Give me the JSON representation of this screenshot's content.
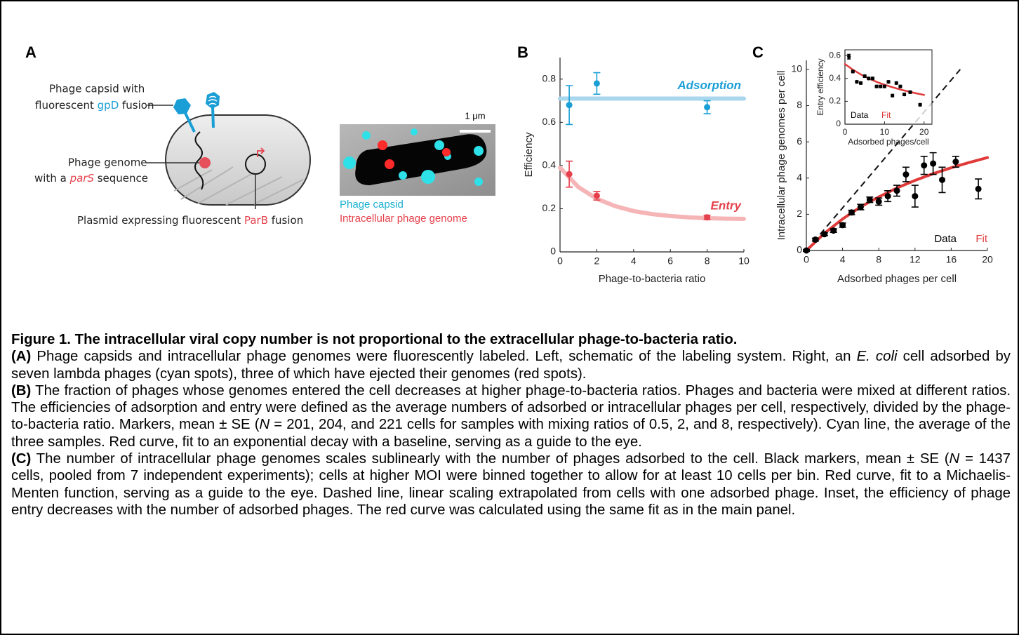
{
  "figure": {
    "panel_a": {
      "label": "A",
      "capsid_label": [
        "Phage capsid with",
        "fluorescent ",
        "gpD",
        " fusion"
      ],
      "genome_label": [
        "Phage genome",
        "with a ",
        "parS",
        " sequence"
      ],
      "plasmid_label": [
        "Plasmid expressing fluorescent ",
        "ParB",
        " fusion"
      ],
      "scale_bar": "1 μm",
      "legend": [
        "Phage capsid",
        "Intracellular phage genome"
      ]
    },
    "caption": {
      "title": "Figure 1. The intracellular viral copy number is not proportional to the extracellular phage-to-bacteria ratio.",
      "paragraphs": [
        {
          "label": "(A)",
          "runs": [
            {
              "text": " Phage capsids and intracellular phage genomes were fluorescently labeled. Left, schematic of the labeling system. Right, an "
            },
            {
              "text": "E. coli",
              "italic": true
            },
            {
              "text": " cell adsorbed by seven lambda phages (cyan spots), three of which have ejected their genomes (red spots)."
            }
          ]
        },
        {
          "label": "(B)",
          "runs": [
            {
              "text": " The fraction of phages whose genomes entered the cell decreases at higher phage-to-bacteria ratios. Phages and bacteria were mixed at different ratios. The efficiencies of adsorption and entry were defined as the average numbers of adsorbed or intracellular phages per cell, respectively, divided by the phage-to-bacteria ratio. Markers, mean ± SE ("
            },
            {
              "text": "N",
              "italic": true
            },
            {
              "text": " = 201, 204, and 221 cells for samples with mixing ratios of 0.5, 2, and 8, respectively). Cyan line, the average of the three samples. Red curve, fit to an exponential decay with a baseline, serving as a guide to the eye."
            }
          ]
        },
        {
          "label": "(C)",
          "runs": [
            {
              "text": " The number of intracellular phage genomes scales sublinearly with the number of phages adsorbed to the cell. Black markers, mean ± SE ("
            },
            {
              "text": "N",
              "italic": true
            },
            {
              "text": " = 1437 cells, pooled from 7 independent experiments); cells at higher MOI were binned together to allow for at least 10 cells per bin. Red curve, fit to a Michaelis-Menten function, serving as a guide to the eye. Dashed line, linear scaling extrapolated from cells with one adsorbed phage. Inset, the efficiency of phage entry decreases with the number of adsorbed phages. The red curve was calculated using the same fit as in the main panel."
            }
          ]
        }
      ]
    }
  },
  "chart_data": [
    {
      "type": "scatter",
      "panel_label": "B",
      "xlabel": "Phage-to-bacteria ratio",
      "ylabel": "Efficiency",
      "xlim": [
        0,
        10
      ],
      "ylim": [
        0,
        0.9
      ],
      "xticks": [
        0,
        2,
        4,
        6,
        8,
        10
      ],
      "yticks": [
        0,
        0.2,
        0.4,
        0.6,
        0.8
      ],
      "series": [
        {
          "name": "Adsorption",
          "color": "#1a9ed6",
          "line_color": "#a8d7ee",
          "x": [
            0.5,
            2,
            8
          ],
          "values": [
            0.68,
            0.78,
            0.67
          ],
          "errors": [
            0.09,
            0.05,
            0.03
          ],
          "line_x": [
            0,
            10
          ],
          "line_values": [
            0.71,
            0.71
          ]
        },
        {
          "name": "Entry",
          "color": "#e5404b",
          "line_color": "#f5b5b7",
          "x": [
            0.5,
            2,
            8
          ],
          "values": [
            0.36,
            0.26,
            0.16
          ],
          "errors": [
            0.06,
            0.02,
            0.01
          ],
          "line_x": [
            0,
            1,
            2,
            3,
            4,
            5,
            6,
            7,
            8,
            9,
            10
          ],
          "line_values": [
            0.39,
            0.3,
            0.246,
            0.212,
            0.189,
            0.175,
            0.166,
            0.16,
            0.156,
            0.154,
            0.153
          ]
        }
      ]
    },
    {
      "type": "scatter",
      "panel_label": "C",
      "xlabel": "Adsorbed phages per cell",
      "ylabel": "Intracellular phage genomes per cell",
      "xlim": [
        0,
        20
      ],
      "ylim": [
        0,
        10.5
      ],
      "xticks": [
        0,
        4,
        8,
        12,
        16,
        20
      ],
      "yticks": [
        0,
        2,
        4,
        6,
        8,
        10
      ],
      "legend": "lower right",
      "reference_line": {
        "x": [
          0,
          17
        ],
        "values": [
          0,
          10
        ]
      },
      "series": [
        {
          "name": "Data",
          "color": "#000000",
          "x": [
            0,
            1,
            2,
            3,
            4,
            5,
            6,
            7,
            8,
            9,
            10,
            11,
            12,
            13,
            14,
            15,
            16.5,
            19
          ],
          "values": [
            0,
            0.6,
            0.9,
            1.1,
            1.4,
            2.1,
            2.4,
            2.8,
            2.7,
            3.0,
            3.3,
            4.2,
            3.0,
            4.7,
            4.8,
            3.9,
            4.9,
            3.4
          ],
          "errors": [
            0.05,
            0.08,
            0.08,
            0.1,
            0.12,
            0.12,
            0.15,
            0.15,
            0.2,
            0.3,
            0.3,
            0.4,
            0.6,
            0.5,
            0.6,
            0.7,
            0.3,
            0.55
          ]
        },
        {
          "name": "Fit",
          "color": "#e03a3a",
          "line_x": [
            0,
            2,
            4,
            6,
            8,
            10,
            12,
            14,
            16,
            18,
            20
          ],
          "line_values": [
            0,
            0.95,
            1.74,
            2.41,
            2.96,
            3.45,
            3.87,
            4.24,
            4.57,
            4.86,
            5.13
          ]
        }
      ]
    },
    {
      "type": "scatter",
      "xlabel": "Adsorbed phages/cell",
      "ylabel": "Entry efficiency",
      "xlim": [
        0,
        22
      ],
      "ylim": [
        0,
        0.65
      ],
      "xticks": [
        0,
        10,
        20
      ],
      "yticks": [
        0,
        0.2,
        0.4,
        0.6
      ],
      "legend": "lower left",
      "series": [
        {
          "name": "Data",
          "color": "#000000",
          "x": [
            1,
            2,
            3,
            4,
            5,
            6,
            7,
            8,
            9,
            10,
            11,
            12,
            13,
            14,
            15,
            16.5,
            19
          ],
          "values": [
            0.59,
            0.46,
            0.37,
            0.36,
            0.42,
            0.4,
            0.4,
            0.33,
            0.33,
            0.33,
            0.37,
            0.25,
            0.36,
            0.33,
            0.26,
            0.28,
            0.17
          ],
          "errors": [
            0.02,
            0.01,
            0.01,
            0.01,
            0.01,
            0.01,
            0.01,
            0.01,
            0.01,
            0.01,
            0.01,
            0.01,
            0.01,
            0.01,
            0.01,
            0.01,
            0.01
          ]
        },
        {
          "name": "Fit",
          "color": "#e03a3a",
          "line_x": [
            0,
            2,
            4,
            6,
            8,
            10,
            12,
            14,
            16,
            18,
            20
          ],
          "line_values": [
            0.526,
            0.476,
            0.435,
            0.4,
            0.37,
            0.345,
            0.323,
            0.303,
            0.286,
            0.27,
            0.256
          ]
        }
      ]
    }
  ]
}
